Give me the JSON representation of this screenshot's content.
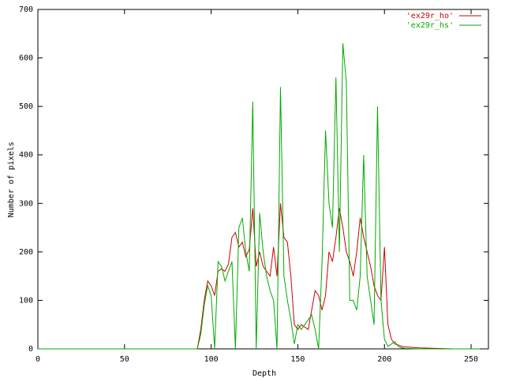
{
  "chart_data": {
    "type": "line",
    "xlabel": "Depth",
    "ylabel": "Number of pixels",
    "x": [
      0,
      92,
      94,
      96,
      98,
      100,
      102,
      104,
      106,
      108,
      110,
      112,
      114,
      116,
      118,
      120,
      122,
      124,
      126,
      128,
      130,
      132,
      134,
      136,
      138,
      140,
      142,
      144,
      146,
      148,
      150,
      152,
      154,
      156,
      158,
      160,
      162,
      164,
      166,
      168,
      170,
      172,
      174,
      176,
      178,
      180,
      182,
      184,
      186,
      188,
      190,
      192,
      194,
      196,
      198,
      200,
      202,
      204,
      206,
      208,
      210,
      212,
      220,
      230,
      240,
      255
    ],
    "series": [
      {
        "name": "'ex29r_ho'",
        "color": "#cc0000",
        "values": [
          0,
          0,
          40,
          100,
          140,
          130,
          110,
          160,
          165,
          160,
          175,
          230,
          240,
          210,
          220,
          190,
          205,
          290,
          170,
          200,
          170,
          160,
          150,
          210,
          150,
          300,
          230,
          220,
          150,
          50,
          40,
          50,
          45,
          40,
          80,
          120,
          110,
          80,
          110,
          200,
          180,
          230,
          290,
          250,
          200,
          180,
          150,
          200,
          270,
          230,
          200,
          170,
          130,
          110,
          100,
          210,
          50,
          20,
          10,
          8,
          5,
          4,
          2,
          1,
          0,
          0
        ]
      },
      {
        "name": "'ex29r_hs'",
        "color": "#00aa00",
        "values": [
          0,
          0,
          30,
          90,
          130,
          110,
          0,
          180,
          170,
          140,
          160,
          180,
          0,
          250,
          270,
          200,
          160,
          510,
          0,
          280,
          200,
          150,
          120,
          100,
          0,
          540,
          150,
          100,
          60,
          10,
          50,
          40,
          50,
          60,
          70,
          40,
          0,
          180,
          450,
          300,
          250,
          560,
          200,
          630,
          550,
          100,
          100,
          80,
          150,
          400,
          150,
          100,
          50,
          500,
          100,
          20,
          5,
          10,
          15,
          5,
          2,
          1,
          0,
          0,
          0,
          0
        ]
      }
    ],
    "xlim": [
      0,
      260
    ],
    "xticks": [
      0,
      50,
      100,
      150,
      200,
      250
    ],
    "ylim": [
      0,
      700
    ],
    "yticks": [
      0,
      100,
      200,
      300,
      400,
      500,
      600,
      700
    ],
    "legend": "top-right"
  }
}
